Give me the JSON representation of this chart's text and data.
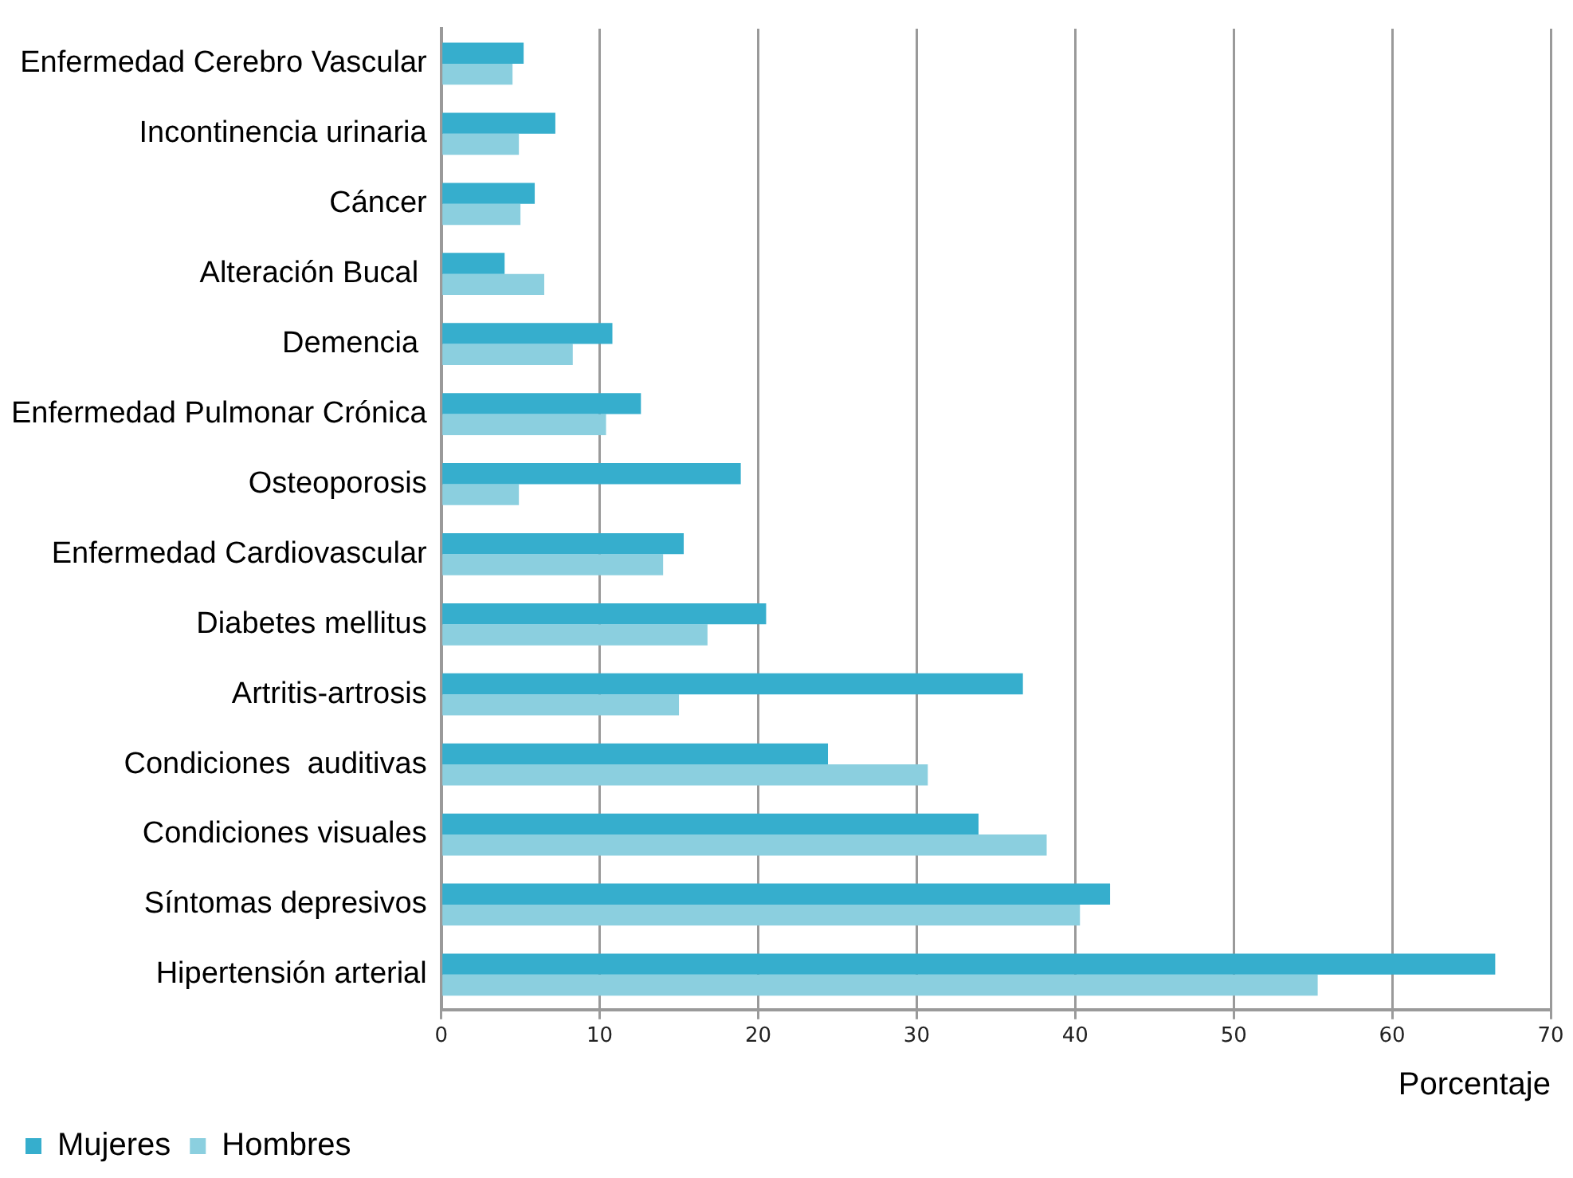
{
  "chart_data": {
    "type": "bar",
    "orientation": "horizontal",
    "xlabel": "Porcentaje",
    "categories": [
      "Enfermedad Cerebro Vascular",
      "Incontinencia urinaria",
      "Cáncer",
      "Alteración Bucal ",
      "Demencia ",
      "Enfermedad Pulmonar Crónica",
      "Osteoporosis",
      "Enfermedad Cardiovascular",
      "Diabetes mellitus",
      "Artritis-artrosis",
      "Condiciones  auditivas",
      "Condiciones visuales",
      "Síntomas depresivos",
      "Hipertensión arterial"
    ],
    "series": [
      {
        "name": "Mujeres",
        "color": "#36aecd",
        "values": [
          5.2,
          7.2,
          5.9,
          4.0,
          10.8,
          12.6,
          18.9,
          15.3,
          20.5,
          36.7,
          24.4,
          33.9,
          42.2,
          66.5
        ]
      },
      {
        "name": "Hombres",
        "color": "#8bcfdf",
        "values": [
          4.5,
          4.9,
          5.0,
          6.5,
          8.3,
          10.4,
          4.9,
          14.0,
          16.8,
          15.0,
          30.7,
          38.2,
          40.3,
          55.3
        ]
      }
    ],
    "xlim": [
      0,
      70
    ],
    "xticks": [
      0,
      10,
      20,
      30,
      40,
      50,
      60,
      70
    ],
    "grid": "x",
    "legend": "bottom left"
  }
}
